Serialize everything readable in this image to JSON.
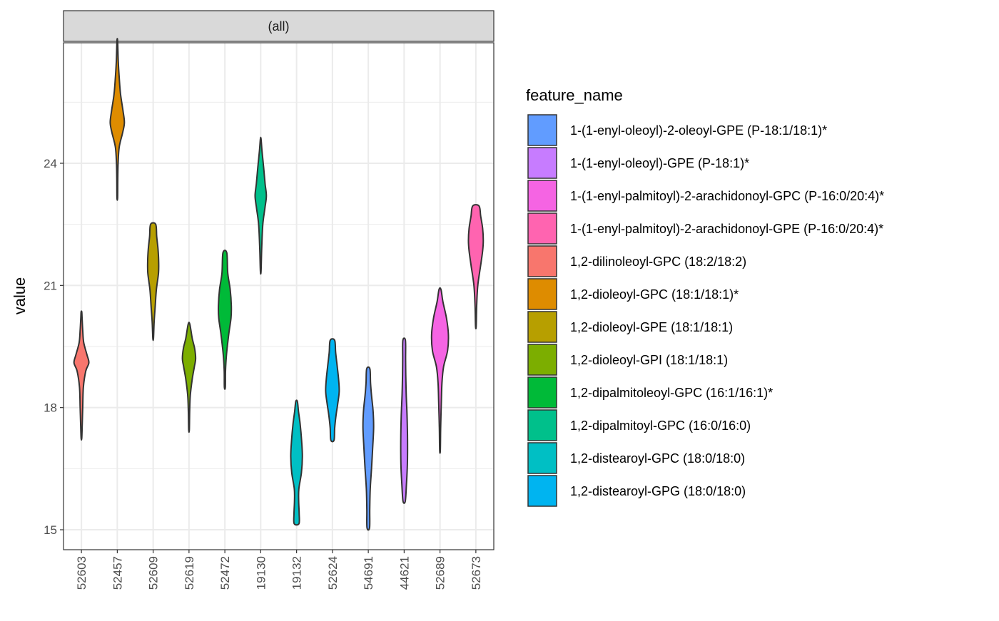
{
  "chart_data": {
    "type": "violin",
    "facet_label": "(all)",
    "ylabel": "value",
    "xlabel": "",
    "ylim": [
      14.6,
      27.0
    ],
    "yticks": [
      15,
      18,
      21,
      24
    ],
    "grid": true,
    "legend_title": "feature_name",
    "legend_position": "right",
    "categories": [
      "52603",
      "52457",
      "52609",
      "52619",
      "52472",
      "19130",
      "19132",
      "52624",
      "54691",
      "44621",
      "52689",
      "52673"
    ],
    "series": [
      {
        "name": "1,2-dilinoleoyl-GPC (18:2/18:2)",
        "category": "52603",
        "color": "#F8766D",
        "min": 17.25,
        "max": 20.35,
        "profile": [
          [
            17.25,
            0.02
          ],
          [
            17.6,
            0.05
          ],
          [
            18.0,
            0.08
          ],
          [
            18.5,
            0.12
          ],
          [
            18.9,
            0.27
          ],
          [
            19.1,
            0.46
          ],
          [
            19.3,
            0.34
          ],
          [
            19.6,
            0.14
          ],
          [
            19.9,
            0.08
          ],
          [
            20.2,
            0.04
          ],
          [
            20.35,
            0.02
          ]
        ]
      },
      {
        "name": "1,2-dioleoyl-GPC (18:1/18:1)*",
        "category": "52457",
        "color": "#DE8C00",
        "min": 23.15,
        "max": 27.0,
        "profile": [
          [
            23.15,
            0.02
          ],
          [
            23.6,
            0.03
          ],
          [
            24.0,
            0.05
          ],
          [
            24.4,
            0.12
          ],
          [
            24.75,
            0.33
          ],
          [
            25.0,
            0.44
          ],
          [
            25.3,
            0.35
          ],
          [
            25.7,
            0.2
          ],
          [
            26.1,
            0.12
          ],
          [
            26.5,
            0.06
          ],
          [
            27.0,
            0.02
          ]
        ]
      },
      {
        "name": "1,2-dioleoyl-GPE (18:1/18:1)",
        "category": "52609",
        "color": "#B79F00",
        "min": 19.7,
        "max": 22.5,
        "profile": [
          [
            19.7,
            0.02
          ],
          [
            20.1,
            0.06
          ],
          [
            20.5,
            0.13
          ],
          [
            20.9,
            0.2
          ],
          [
            21.3,
            0.33
          ],
          [
            21.6,
            0.34
          ],
          [
            21.9,
            0.3
          ],
          [
            22.2,
            0.22
          ],
          [
            22.5,
            0.16
          ]
        ]
      },
      {
        "name": "1,2-dioleoyl-GPI (18:1/18:1)",
        "category": "52619",
        "color": "#7CAE00",
        "min": 17.45,
        "max": 20.05,
        "profile": [
          [
            17.45,
            0.02
          ],
          [
            17.9,
            0.04
          ],
          [
            18.3,
            0.08
          ],
          [
            18.7,
            0.2
          ],
          [
            19.0,
            0.33
          ],
          [
            19.2,
            0.41
          ],
          [
            19.45,
            0.35
          ],
          [
            19.7,
            0.2
          ],
          [
            20.05,
            0.05
          ]
        ]
      },
      {
        "name": "1,2-dipalmitoleoyl-GPC (16:1/16:1)*",
        "category": "52472",
        "color": "#00BA38",
        "min": 18.5,
        "max": 21.8,
        "profile": [
          [
            18.5,
            0.03
          ],
          [
            18.9,
            0.04
          ],
          [
            19.3,
            0.1
          ],
          [
            19.8,
            0.24
          ],
          [
            20.2,
            0.38
          ],
          [
            20.5,
            0.4
          ],
          [
            20.9,
            0.33
          ],
          [
            21.3,
            0.18
          ],
          [
            21.8,
            0.12
          ]
        ]
      },
      {
        "name": "1,2-dipalmitoyl-GPC (16:0/16:0)",
        "category": "19130",
        "color": "#00C08B",
        "min": 21.35,
        "max": 24.6,
        "profile": [
          [
            21.35,
            0.02
          ],
          [
            21.9,
            0.06
          ],
          [
            22.5,
            0.13
          ],
          [
            22.9,
            0.26
          ],
          [
            23.2,
            0.35
          ],
          [
            23.5,
            0.27
          ],
          [
            23.9,
            0.18
          ],
          [
            24.3,
            0.08
          ],
          [
            24.6,
            0.02
          ]
        ]
      },
      {
        "name": "1,2-distearoyl-GPC (18:0/18:0)",
        "category": "19132",
        "color": "#00BFC4",
        "min": 15.15,
        "max": 18.15,
        "profile": [
          [
            15.15,
            0.15
          ],
          [
            15.4,
            0.16
          ],
          [
            15.7,
            0.13
          ],
          [
            16.0,
            0.14
          ],
          [
            16.4,
            0.3
          ],
          [
            16.8,
            0.36
          ],
          [
            17.2,
            0.31
          ],
          [
            17.6,
            0.22
          ],
          [
            17.9,
            0.12
          ],
          [
            18.15,
            0.05
          ]
        ]
      },
      {
        "name": "1,2-distearoyl-GPG (18:0/18:0)",
        "category": "52624",
        "color": "#00B4F0",
        "min": 17.2,
        "max": 19.65,
        "profile": [
          [
            17.2,
            0.1
          ],
          [
            17.5,
            0.14
          ],
          [
            17.8,
            0.22
          ],
          [
            18.1,
            0.33
          ],
          [
            18.4,
            0.42
          ],
          [
            18.7,
            0.38
          ],
          [
            19.0,
            0.3
          ],
          [
            19.35,
            0.2
          ],
          [
            19.65,
            0.14
          ]
        ]
      },
      {
        "name": "1-(1-enyl-oleoyl)-2-oleoyl-GPE (P-18:1/18:1)*",
        "category": "54691",
        "color": "#619CFF",
        "min": 15.05,
        "max": 18.95,
        "profile": [
          [
            15.05,
            0.08
          ],
          [
            15.5,
            0.09
          ],
          [
            16.0,
            0.12
          ],
          [
            16.5,
            0.2
          ],
          [
            17.0,
            0.27
          ],
          [
            17.5,
            0.33
          ],
          [
            17.9,
            0.3
          ],
          [
            18.3,
            0.2
          ],
          [
            18.6,
            0.14
          ],
          [
            18.95,
            0.1
          ]
        ]
      },
      {
        "name": "1-(1-enyl-oleoyl)-GPE (P-18:1)*",
        "category": "44621",
        "color": "#C77CFF",
        "min": 15.7,
        "max": 19.65,
        "profile": [
          [
            15.7,
            0.07
          ],
          [
            16.1,
            0.14
          ],
          [
            16.6,
            0.2
          ],
          [
            17.2,
            0.21
          ],
          [
            17.8,
            0.18
          ],
          [
            18.3,
            0.13
          ],
          [
            18.8,
            0.1
          ],
          [
            19.2,
            0.09
          ],
          [
            19.65,
            0.08
          ]
        ]
      },
      {
        "name": "1-(1-enyl-palmitoyl)-2-arachidonoyl-GPC (P-16:0/20:4)*",
        "category": "52689",
        "color": "#F564E3",
        "min": 16.95,
        "max": 20.9,
        "profile": [
          [
            16.95,
            0.02
          ],
          [
            17.5,
            0.04
          ],
          [
            18.1,
            0.08
          ],
          [
            18.6,
            0.12
          ],
          [
            19.0,
            0.22
          ],
          [
            19.4,
            0.47
          ],
          [
            19.8,
            0.52
          ],
          [
            20.2,
            0.4
          ],
          [
            20.6,
            0.18
          ],
          [
            20.9,
            0.06
          ]
        ]
      },
      {
        "name": "1-(1-enyl-palmitoyl)-2-arachidonoyl-GPE (P-16:0/20:4)*",
        "category": "52673",
        "color": "#FF64B0",
        "min": 20.0,
        "max": 22.95,
        "profile": [
          [
            20.0,
            0.02
          ],
          [
            20.5,
            0.05
          ],
          [
            21.0,
            0.12
          ],
          [
            21.5,
            0.3
          ],
          [
            21.85,
            0.42
          ],
          [
            22.1,
            0.46
          ],
          [
            22.4,
            0.42
          ],
          [
            22.7,
            0.3
          ],
          [
            22.95,
            0.2
          ]
        ]
      }
    ],
    "legend_order": [
      "1-(1-enyl-oleoyl)-2-oleoyl-GPE (P-18:1/18:1)*",
      "1-(1-enyl-oleoyl)-GPE (P-18:1)*",
      "1-(1-enyl-palmitoyl)-2-arachidonoyl-GPC (P-16:0/20:4)*",
      "1-(1-enyl-palmitoyl)-2-arachidonoyl-GPE (P-16:0/20:4)*",
      "1,2-dilinoleoyl-GPC (18:2/18:2)",
      "1,2-dioleoyl-GPC (18:1/18:1)*",
      "1,2-dioleoyl-GPE (18:1/18:1)",
      "1,2-dioleoyl-GPI (18:1/18:1)",
      "1,2-dipalmitoleoyl-GPC (16:1/16:1)*",
      "1,2-dipalmitoyl-GPC (16:0/16:0)",
      "1,2-distearoyl-GPC (18:0/18:0)",
      "1,2-distearoyl-GPG (18:0/18:0)"
    ]
  }
}
